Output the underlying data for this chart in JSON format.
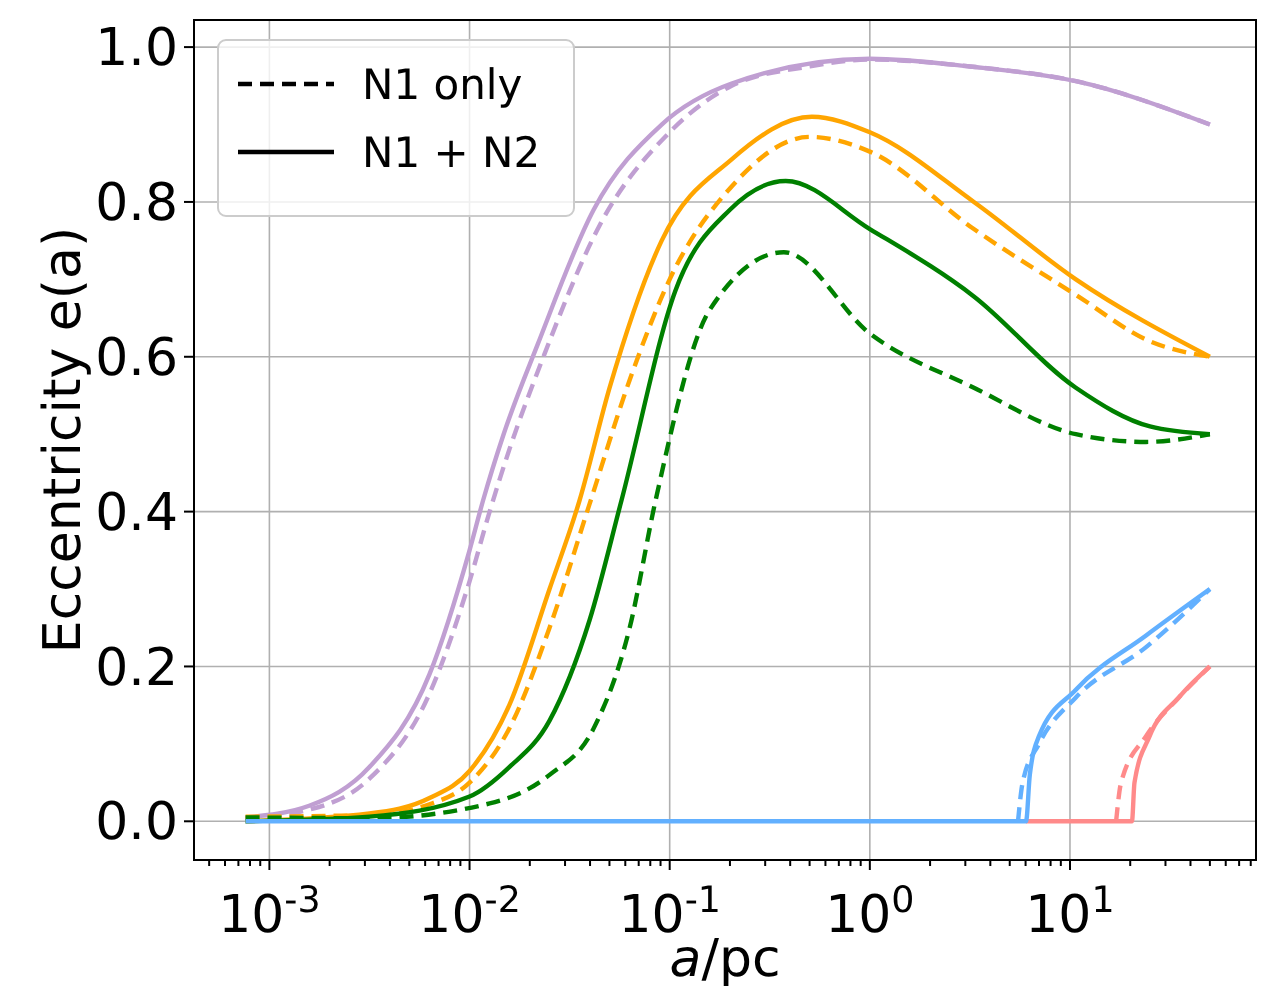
{
  "chart_data": {
    "type": "line",
    "xlabel": "a/pc",
    "annotations": [
      "N1 only",
      "N1 + N2"
    ],
    "ylabel": "Eccentricity e(a)",
    "log": "x",
    "grid": true,
    "xlim": [
      0.00042,
      85
    ],
    "ylim": [
      -0.05,
      1.035
    ],
    "xticks": [
      {
        "value": 0.0005,
        "label": null
      },
      {
        "value": 0.0006,
        "label": null
      },
      {
        "value": 0.0007,
        "label": null
      },
      {
        "value": 0.0008,
        "label": null
      },
      {
        "value": 0.0009,
        "label": null
      },
      {
        "value": 0.001,
        "label": "10$^{-3}$"
      },
      {
        "value": 0.002,
        "label": null
      },
      {
        "value": 0.003,
        "label": null
      },
      {
        "value": 0.004,
        "label": null
      },
      {
        "value": 0.005,
        "label": null
      },
      {
        "value": 0.006,
        "label": null
      },
      {
        "value": 0.007,
        "label": null
      },
      {
        "value": 0.008,
        "label": null
      },
      {
        "value": 0.009,
        "label": null
      },
      {
        "value": 0.01,
        "label": "10$^{-2}$"
      },
      {
        "value": 0.02,
        "label": null
      },
      {
        "value": 0.03,
        "label": null
      },
      {
        "value": 0.04,
        "label": null
      },
      {
        "value": 0.05,
        "label": null
      },
      {
        "value": 0.06,
        "label": null
      },
      {
        "value": 0.07,
        "label": null
      },
      {
        "value": 0.08,
        "label": null
      },
      {
        "value": 0.09,
        "label": null
      },
      {
        "value": 0.1,
        "label": "10$^{-1}$"
      },
      {
        "value": 0.2,
        "label": null
      },
      {
        "value": 0.3,
        "label": null
      },
      {
        "value": 0.4,
        "label": null
      },
      {
        "value": 0.5,
        "label": null
      },
      {
        "value": 0.6,
        "label": null
      },
      {
        "value": 0.7,
        "label": null
      },
      {
        "value": 0.8,
        "label": null
      },
      {
        "value": 0.9,
        "label": null
      },
      {
        "value": 1,
        "label": "10$^{0}$"
      },
      {
        "value": 2,
        "label": null
      },
      {
        "value": 3,
        "label": null
      },
      {
        "value": 4,
        "label": null
      },
      {
        "value": 5,
        "label": null
      },
      {
        "value": 6,
        "label": null
      },
      {
        "value": 7,
        "label": null
      },
      {
        "value": 8,
        "label": null
      },
      {
        "value": 9,
        "label": null
      },
      {
        "value": 10,
        "label": "10$^{1}$"
      },
      {
        "value": 20,
        "label": null
      },
      {
        "value": 30,
        "label": null
      },
      {
        "value": 40,
        "label": null
      },
      {
        "value": 50,
        "label": null
      },
      {
        "value": 60,
        "label": null
      },
      {
        "value": 70,
        "label": null
      },
      {
        "value": 80,
        "label": null
      }
    ],
    "yticks": [
      {
        "value": 0,
        "label": "0.0"
      },
      {
        "value": 0.2,
        "label": "0.2"
      },
      {
        "value": 0.4,
        "label": "0.4"
      },
      {
        "value": 0.6,
        "label": "0.6"
      },
      {
        "value": 0.8,
        "label": "0.8"
      },
      {
        "value": 1,
        "label": "1.0"
      }
    ],
    "series": [
      {
        "color": "#c09fd2",
        "line_style": "dashed",
        "x": [
          0.00076,
          0.00158,
          0.00316,
          0.00631,
          0.01,
          0.0126,
          0.0158,
          0.0234,
          0.0447,
          0.1,
          0.204,
          0.501,
          1,
          3.16,
          10.7,
          50
        ],
        "values": [
          0.004,
          0.015,
          0.055,
          0.165,
          0.31,
          0.4,
          0.48,
          0.6,
          0.77,
          0.89,
          0.95,
          0.975,
          0.984,
          0.975,
          0.956,
          0.9
        ]
      },
      {
        "color": "#c09fd2",
        "line_style": "solid",
        "x": [
          0.00076,
          0.00158,
          0.00316,
          0.00631,
          0.01,
          0.0117,
          0.0148,
          0.0219,
          0.0417,
          0.0912,
          0.204,
          1,
          3.16,
          10.7,
          50
        ],
        "values": [
          0.005,
          0.02,
          0.07,
          0.19,
          0.35,
          0.415,
          0.5,
          0.616,
          0.79,
          0.9,
          0.953,
          0.985,
          0.975,
          0.956,
          0.9
        ]
      },
      {
        "color": "#ffa500",
        "line_style": "dashed",
        "x": [
          0.00076,
          0.00316,
          0.00631,
          0.01,
          0.0158,
          0.0251,
          0.0398,
          0.0631,
          0.1,
          0.204,
          0.501,
          1,
          3.31,
          10.7,
          25.1,
          50
        ],
        "values": [
          0.006,
          0.008,
          0.022,
          0.05,
          0.12,
          0.25,
          0.41,
          0.57,
          0.7,
          0.82,
          0.884,
          0.865,
          0.765,
          0.68,
          0.62,
          0.6
        ]
      },
      {
        "color": "#ffa500",
        "line_style": "solid",
        "x": [
          0.00076,
          0.00316,
          0.00631,
          0.01,
          0.0158,
          0.0251,
          0.0355,
          0.0501,
          0.0912,
          0.204,
          0.513,
          1,
          3.31,
          10.7,
          50
        ],
        "values": [
          0,
          0.01,
          0.03,
          0.065,
          0.15,
          0.3,
          0.415,
          0.56,
          0.75,
          0.855,
          0.91,
          0.89,
          0.8,
          0.7,
          0.6
        ]
      },
      {
        "color": "#008000",
        "line_style": "dashed",
        "x": [
          0.00076,
          0.00316,
          0.0126,
          0.0251,
          0.0417,
          0.0631,
          0.0851,
          0.158,
          0.372,
          1,
          3.31,
          10.7,
          24,
          50
        ],
        "values": [
          0.005,
          0.004,
          0.023,
          0.06,
          0.12,
          0.25,
          0.415,
          0.66,
          0.735,
          0.63,
          0.56,
          0.5,
          0.49,
          0.5
        ]
      },
      {
        "color": "#008000",
        "line_style": "solid",
        "x": [
          0.00076,
          0.00316,
          0.01,
          0.0158,
          0.0251,
          0.0398,
          0.0575,
          0.107,
          0.2,
          0.38,
          1,
          3.31,
          10.7,
          25.1,
          50
        ],
        "values": [
          0,
          0.006,
          0.032,
          0.07,
          0.13,
          0.26,
          0.415,
          0.686,
          0.79,
          0.827,
          0.765,
          0.678,
          0.56,
          0.51,
          0.5
        ]
      },
      {
        "color": "#ff8a8a",
        "line_style": "dashed",
        "x": [
          17,
          18,
          24,
          35,
          50
        ],
        "values": [
          0,
          0.05,
          0.11,
          0.16,
          0.2
        ]
      },
      {
        "color": "#ff8a8a",
        "line_style": "solid",
        "x": [
          6.03,
          20.4,
          21,
          25,
          35,
          50
        ],
        "values": [
          0,
          0,
          0.05,
          0.11,
          0.16,
          0.2
        ]
      },
      {
        "color": "#62b0ff",
        "line_style": "dashed",
        "x": [
          5.5,
          5.8,
          7,
          10.7,
          24,
          50
        ],
        "values": [
          0,
          0.05,
          0.1,
          0.16,
          0.225,
          0.3
        ]
      },
      {
        "color": "#62b0ff",
        "line_style": "solid",
        "x": [
          0.00076,
          6.03,
          6.3,
          7,
          10.7,
          24,
          50
        ],
        "values": [
          0,
          0,
          0.06,
          0.11,
          0.17,
          0.24,
          0.3
        ]
      }
    ]
  }
}
